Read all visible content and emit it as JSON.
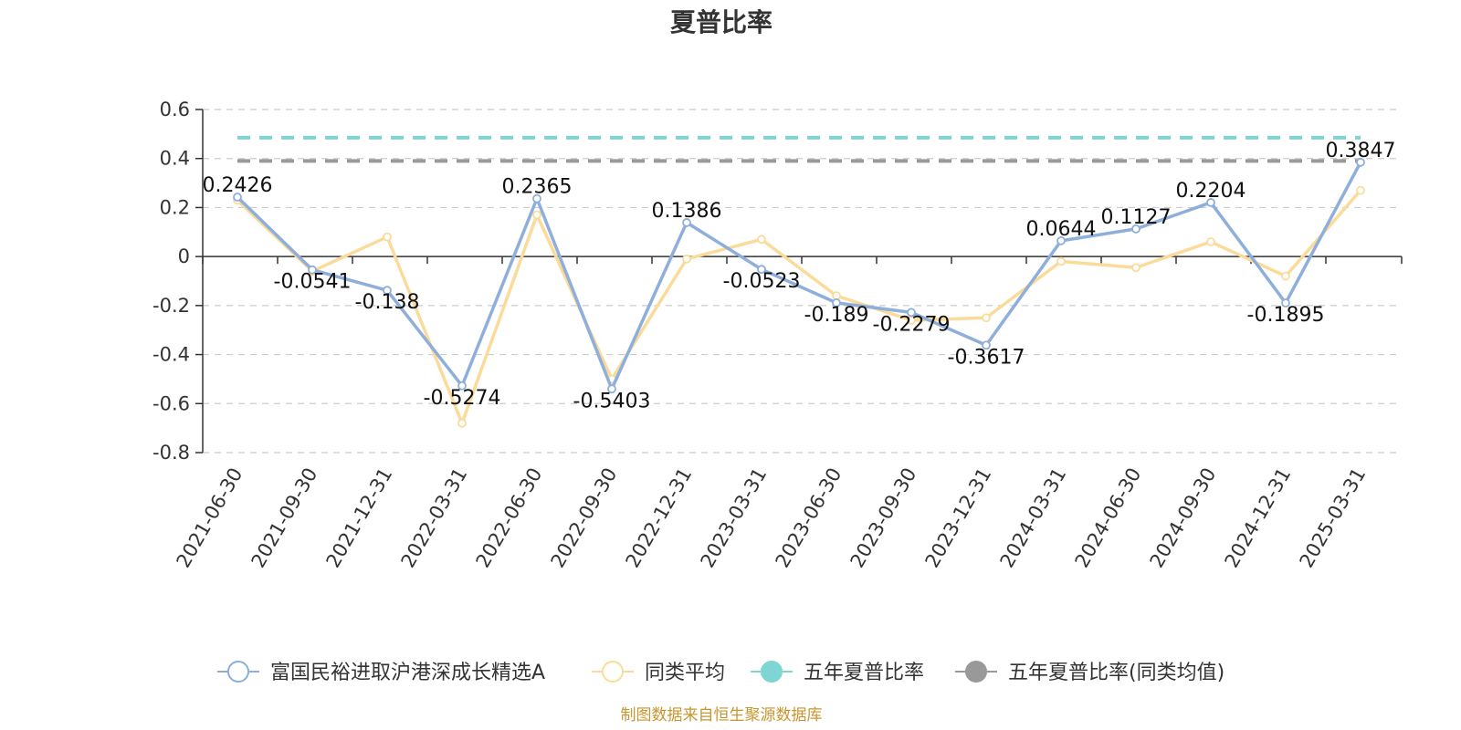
{
  "chart_data": {
    "type": "line",
    "title": "夏普比率",
    "categories": [
      "2021-06-30",
      "2021-09-30",
      "2021-12-31",
      "2022-03-31",
      "2022-06-30",
      "2022-09-30",
      "2022-12-31",
      "2023-03-31",
      "2023-06-30",
      "2023-09-30",
      "2023-12-31",
      "2024-03-31",
      "2024-06-30",
      "2024-09-30",
      "2024-12-31",
      "2025-03-31"
    ],
    "ylim": [
      -0.8,
      0.6
    ],
    "yticks": [
      0.6,
      0.4,
      0.2,
      0,
      -0.2,
      -0.4,
      -0.6,
      -0.8
    ],
    "ytick_labels": [
      "0.6",
      "0.4",
      "0.2",
      "0",
      "-0.2",
      "-0.4",
      "-0.6",
      "-0.8"
    ],
    "grid": true,
    "legend_position": "bottom",
    "series": [
      {
        "name": "富国民裕进取沪港深成长精选A",
        "color": "#8eaedb",
        "values": [
          0.2426,
          -0.0541,
          -0.138,
          -0.5274,
          0.2365,
          -0.5403,
          0.1386,
          -0.0523,
          -0.189,
          -0.2279,
          -0.3617,
          0.0644,
          0.1127,
          0.2204,
          -0.1895,
          0.3847
        ],
        "labels": [
          "0.2426",
          "-0.0541",
          "-0.138",
          "-0.5274",
          "0.2365",
          "-0.5403",
          "0.1386",
          "-0.0523",
          "-0.189",
          "-0.2279",
          "-0.3617",
          "0.0644",
          "0.1127",
          "0.2204",
          "-0.1895",
          "0.3847"
        ]
      },
      {
        "name": "同类平均",
        "color": "#fadb9a",
        "values": [
          0.23,
          -0.06,
          0.08,
          -0.68,
          0.17,
          -0.5,
          -0.01,
          0.07,
          -0.16,
          -0.26,
          -0.25,
          -0.02,
          -0.045,
          0.06,
          -0.08,
          0.27
        ]
      },
      {
        "name": "五年夏普比率",
        "color": "#7fd4d4",
        "style": "dashed",
        "value": 0.485
      },
      {
        "name": "五年夏普比率(同类均值)",
        "color": "#999999",
        "style": "dashed",
        "value": 0.39
      }
    ],
    "source": "制图数据来自恒生聚源数据库"
  }
}
